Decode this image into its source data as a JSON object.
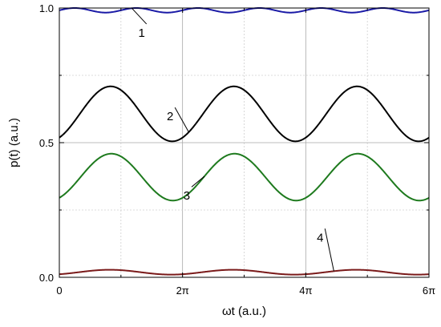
{
  "chart_data": {
    "type": "line",
    "xlabel": "ωt (a.u.)",
    "ylabel": "p(t) (a.u.)",
    "xlim": [
      0,
      18.8496
    ],
    "ylim": [
      0,
      1.0
    ],
    "x_ticks": [
      {
        "value": 0,
        "label": "0"
      },
      {
        "value": 6.2832,
        "label": "2π"
      },
      {
        "value": 12.5664,
        "label": "4π"
      },
      {
        "value": 18.8496,
        "label": "6π"
      }
    ],
    "y_ticks": [
      {
        "value": 0.0,
        "label": "0.0"
      },
      {
        "value": 0.5,
        "label": "0.5"
      },
      {
        "value": 1.0,
        "label": "1.0"
      }
    ],
    "grid": true,
    "series": [
      {
        "name": "1",
        "color": "#1a1aa6",
        "mean": 0.9915,
        "amplitude": 0.0085,
        "frequency": 2,
        "phase": 0.0
      },
      {
        "name": "2",
        "color": "#000000",
        "mean": 0.607,
        "amplitude": 0.102,
        "frequency": 1,
        "phase": 1.045
      },
      {
        "name": "3",
        "color": "#1e7a1e",
        "mean": 0.372,
        "amplitude": 0.087,
        "frequency": 1,
        "phase": 1.08
      },
      {
        "name": "4",
        "color": "#7a1a1a",
        "mean": 0.019,
        "amplitude": 0.009,
        "frequency": 1,
        "phase": 1.0
      }
    ],
    "annotations": [
      {
        "label": "1",
        "series": 0,
        "point_x": 3.7,
        "text_x": 4.2,
        "text_y": 0.905
      },
      {
        "label": "2",
        "series": 1,
        "point_x": 6.6,
        "text_x": 5.65,
        "text_y": 0.595
      },
      {
        "label": "3",
        "series": 2,
        "point_x": 7.4,
        "text_x": 6.5,
        "text_y": 0.3
      },
      {
        "label": "4",
        "series": 3,
        "point_x": 14.0,
        "text_x": 13.3,
        "text_y": 0.145
      }
    ]
  }
}
